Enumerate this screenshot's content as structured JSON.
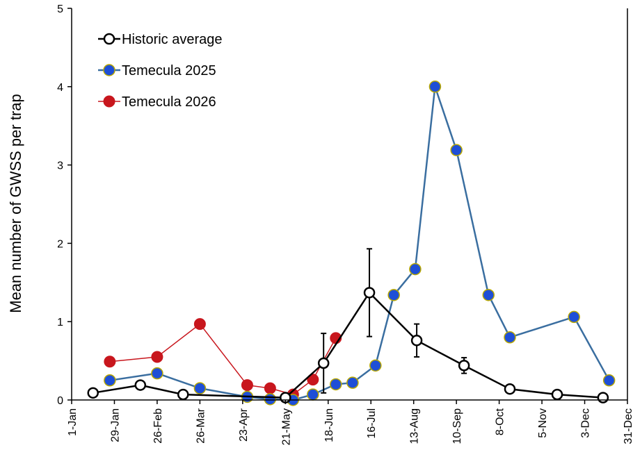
{
  "chart_data": {
    "type": "line",
    "title": "",
    "xlabel": "",
    "ylabel": "Mean number of GWSS per trap",
    "ylim": [
      0,
      5
    ],
    "yticks": [
      "0",
      "1",
      "2",
      "3",
      "4",
      "5"
    ],
    "xlim": [
      "2025-01-01",
      "2025-12-31"
    ],
    "xticks": [
      "1-Jan",
      "29-Jan",
      "26-Feb",
      "26-Mar",
      "23-Apr",
      "21-May",
      "18-Jun",
      "16-Jul",
      "13-Aug",
      "10-Sep",
      "8-Oct",
      "5-Nov",
      "3-Dec",
      "31-Dec"
    ],
    "grid": false,
    "legend_position": "top-left",
    "colors": {
      "historic": "#000000",
      "temecula_2025_fill": "#1f4fd6",
      "temecula_2025_line": "#3a6ea0",
      "temecula_2025_outline": "#b9a800",
      "temecula_2026": "#c8161d"
    },
    "series": [
      {
        "name": "Historic average",
        "style": "open-circle",
        "points": [
          {
            "x": "2025-01-15",
            "y": 0.09
          },
          {
            "x": "2025-02-15",
            "y": 0.19,
            "err": 0.05
          },
          {
            "x": "2025-03-15",
            "y": 0.07
          },
          {
            "x": "2025-05-21",
            "y": 0.03
          },
          {
            "x": "2025-06-15",
            "y": 0.47,
            "err": 0.38
          },
          {
            "x": "2025-07-15",
            "y": 1.37,
            "err": 0.56
          },
          {
            "x": "2025-08-15",
            "y": 0.76,
            "err": 0.21
          },
          {
            "x": "2025-09-15",
            "y": 0.44,
            "err": 0.1
          },
          {
            "x": "2025-10-15",
            "y": 0.14
          },
          {
            "x": "2025-11-15",
            "y": 0.07
          },
          {
            "x": "2025-12-15",
            "y": 0.03
          }
        ]
      },
      {
        "name": "Temecula 2025",
        "style": "filled-blue",
        "points": [
          {
            "x": "2025-01-26",
            "y": 0.25
          },
          {
            "x": "2025-02-26",
            "y": 0.34
          },
          {
            "x": "2025-03-26",
            "y": 0.15
          },
          {
            "x": "2025-04-26",
            "y": 0.04
          },
          {
            "x": "2025-05-11",
            "y": 0.01
          },
          {
            "x": "2025-05-26",
            "y": 0.0
          },
          {
            "x": "2025-06-08",
            "y": 0.07
          },
          {
            "x": "2025-06-23",
            "y": 0.2
          },
          {
            "x": "2025-07-04",
            "y": 0.22
          },
          {
            "x": "2025-07-19",
            "y": 0.44
          },
          {
            "x": "2025-07-31",
            "y": 1.34
          },
          {
            "x": "2025-08-14",
            "y": 1.67
          },
          {
            "x": "2025-08-27",
            "y": 4.0
          },
          {
            "x": "2025-09-10",
            "y": 3.19
          },
          {
            "x": "2025-10-01",
            "y": 1.34
          },
          {
            "x": "2025-10-15",
            "y": 0.8
          },
          {
            "x": "2025-11-26",
            "y": 1.06
          },
          {
            "x": "2025-12-19",
            "y": 0.25
          }
        ]
      },
      {
        "name": "Temecula 2026",
        "style": "filled-red",
        "points": [
          {
            "x": "2025-01-26",
            "y": 0.49
          },
          {
            "x": "2025-02-26",
            "y": 0.55
          },
          {
            "x": "2025-03-26",
            "y": 0.97
          },
          {
            "x": "2025-04-26",
            "y": 0.19
          },
          {
            "x": "2025-05-11",
            "y": 0.15
          },
          {
            "x": "2025-05-26",
            "y": 0.07
          },
          {
            "x": "2025-06-08",
            "y": 0.26
          },
          {
            "x": "2025-06-23",
            "y": 0.79
          }
        ]
      }
    ]
  }
}
